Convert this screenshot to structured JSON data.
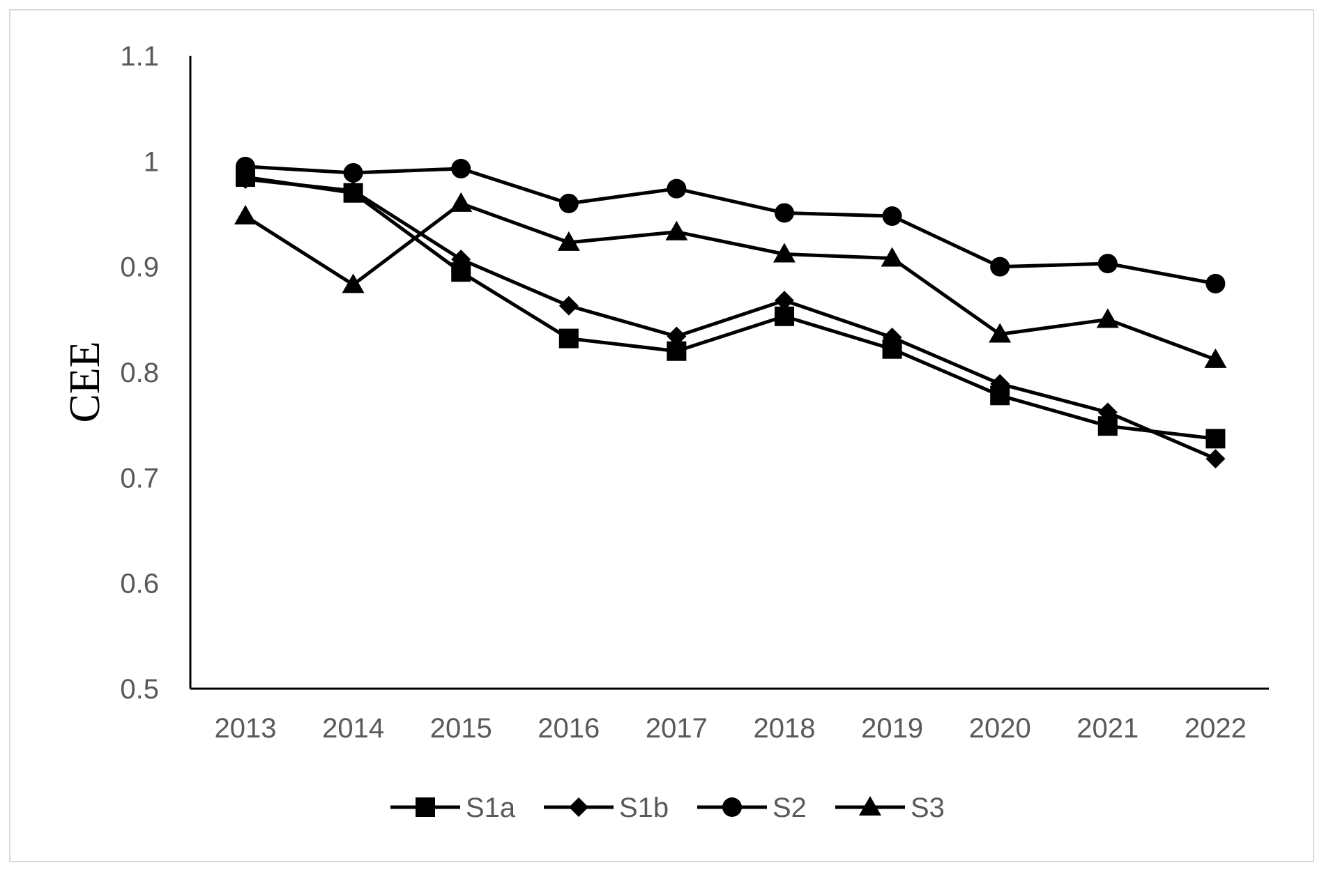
{
  "chart_data": {
    "type": "line",
    "title": "",
    "xlabel": "",
    "ylabel": "CEE",
    "categories": [
      "2013",
      "2014",
      "2015",
      "2016",
      "2017",
      "2018",
      "2019",
      "2020",
      "2021",
      "2022"
    ],
    "ylim": [
      0.5,
      1.1
    ],
    "yticks": [
      "0.5",
      "0.6",
      "0.7",
      "0.8",
      "0.9",
      "1",
      "1.1"
    ],
    "grid": false,
    "legend_position": "bottom",
    "line_color": "#000000",
    "series": [
      {
        "name": "S1a",
        "marker": "square",
        "values": [
          0.985,
          0.97,
          0.895,
          0.832,
          0.82,
          0.853,
          0.822,
          0.778,
          0.749,
          0.737
        ]
      },
      {
        "name": "S1b",
        "marker": "diamond",
        "values": [
          0.983,
          0.972,
          0.907,
          0.863,
          0.834,
          0.868,
          0.833,
          0.789,
          0.762,
          0.718
        ]
      },
      {
        "name": "S2",
        "marker": "circle",
        "values": [
          0.995,
          0.989,
          0.993,
          0.96,
          0.974,
          0.951,
          0.948,
          0.9,
          0.903,
          0.884
        ]
      },
      {
        "name": "S3",
        "marker": "triangle",
        "values": [
          0.948,
          0.883,
          0.96,
          0.923,
          0.933,
          0.912,
          0.908,
          0.836,
          0.85,
          0.812
        ]
      }
    ]
  }
}
